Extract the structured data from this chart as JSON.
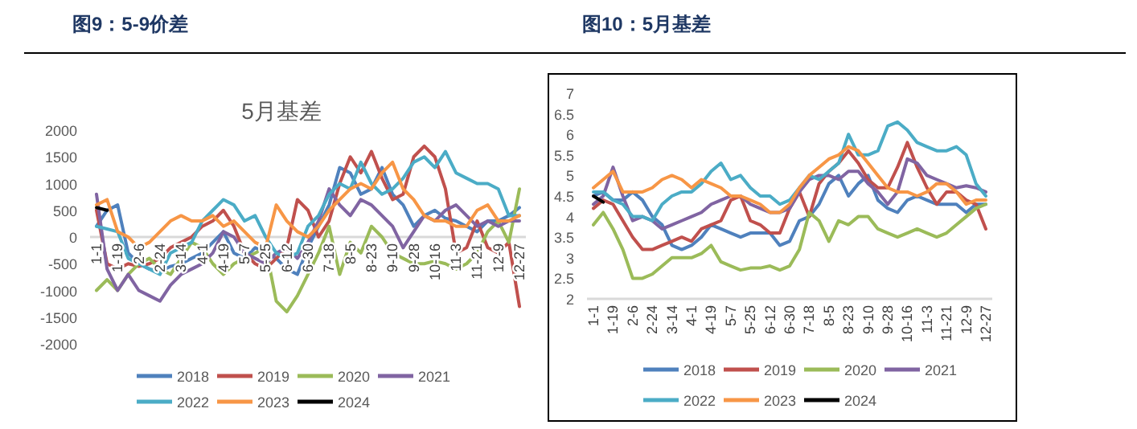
{
  "chart_data": [
    {
      "type": "line",
      "title": "图9：5-9价差",
      "subtitle": "5月基差",
      "legend": "bottom",
      "categories": [
        "1-1",
        null,
        "1-19",
        null,
        "2-6",
        null,
        "2-24",
        null,
        "3-14",
        null,
        "4-1",
        null,
        "4-19",
        null,
        "5-7",
        null,
        "5-25",
        null,
        "6-12",
        null,
        "6-30",
        null,
        "7-18",
        null,
        "8-5",
        null,
        "8-23",
        null,
        "9-10",
        null,
        "9-28",
        null,
        "10-16",
        null,
        "11-3",
        null,
        "11-21",
        null,
        "12-9",
        null,
        "12-27"
      ],
      "ylim": [
        -2000,
        2000
      ],
      "yticks": [
        -2000,
        -1500,
        -1000,
        -500,
        0,
        500,
        1000,
        1500,
        2000
      ],
      "series": [
        {
          "name": "2018",
          "color": "#4f81bd",
          "values": [
            200,
            500,
            600,
            -300,
            -500,
            -600,
            -650,
            -550,
            -500,
            -400,
            -300,
            -100,
            100,
            -300,
            -400,
            -200,
            -300,
            -400,
            -600,
            -700,
            -200,
            200,
            600,
            1300,
            1200,
            800,
            900,
            1300,
            800,
            600,
            200,
            400,
            500,
            350,
            300,
            200,
            100,
            300,
            300,
            400,
            550
          ]
        },
        {
          "name": "2019",
          "color": "#c0504d",
          "values": [
            500,
            -500,
            -600,
            -500,
            -550,
            -500,
            -400,
            -200,
            -100,
            0,
            200,
            300,
            500,
            200,
            -300,
            -500,
            -600,
            -400,
            -200,
            700,
            500,
            0,
            300,
            1000,
            1500,
            1200,
            1600,
            1100,
            700,
            800,
            1500,
            1700,
            1500,
            900,
            -300,
            -200,
            300,
            -200,
            -300,
            -100,
            -1300
          ]
        },
        {
          "name": "2020",
          "color": "#9bbb59",
          "values": [
            -1000,
            -800,
            -1000,
            -700,
            -500,
            -400,
            -600,
            -700,
            -400,
            -100,
            -200,
            -500,
            -700,
            -500,
            -400,
            -300,
            -200,
            -1200,
            -1400,
            -1100,
            -700,
            -300,
            200,
            -700,
            -100,
            -300,
            200,
            0,
            -300,
            -400,
            -500,
            -500,
            -450,
            -500,
            -600,
            -500,
            -300,
            100,
            300,
            -100,
            900
          ]
        },
        {
          "name": "2021",
          "color": "#8064a2",
          "values": [
            800,
            -600,
            -1000,
            -700,
            -1000,
            -1100,
            -1200,
            -900,
            -700,
            -600,
            -500,
            -300,
            100,
            0,
            -300,
            -400,
            -500,
            -300,
            -200,
            -400,
            -100,
            300,
            900,
            600,
            400,
            700,
            600,
            400,
            200,
            -200,
            100,
            400,
            300,
            500,
            600,
            400,
            200,
            300,
            200,
            300,
            300
          ]
        },
        {
          "name": "2022",
          "color": "#4bacc6",
          "values": [
            200,
            150,
            100,
            -400,
            -500,
            -600,
            -700,
            -300,
            -200,
            -100,
            300,
            500,
            700,
            600,
            300,
            400,
            0,
            -300,
            -400,
            -300,
            200,
            400,
            800,
            1000,
            900,
            1400,
            1000,
            800,
            900,
            1100,
            1400,
            1500,
            1300,
            1600,
            1200,
            1100,
            1000,
            1000,
            900,
            400,
            400
          ]
        },
        {
          "name": "2023",
          "color": "#f79646",
          "values": [
            600,
            700,
            100,
            0,
            -200,
            -100,
            100,
            300,
            400,
            300,
            300,
            400,
            200,
            300,
            100,
            -100,
            -200,
            600,
            300,
            100,
            0,
            200,
            500,
            700,
            900,
            1000,
            900,
            1200,
            1400,
            900,
            700,
            400,
            300,
            300,
            200,
            200,
            500,
            600,
            300,
            300,
            400
          ]
        },
        {
          "name": "2024",
          "color": "#000000",
          "values": [
            550,
            500,
            null,
            null,
            null,
            null,
            null,
            null,
            null,
            null,
            null,
            null,
            null,
            null,
            null,
            null,
            null,
            null,
            null,
            null,
            null,
            null,
            null,
            null,
            null,
            null,
            null,
            null,
            null,
            null,
            null,
            null,
            null,
            null,
            null,
            null,
            null,
            null,
            null,
            null,
            null
          ]
        }
      ]
    },
    {
      "type": "line",
      "title": "图10：5月基差",
      "legend": "bottom",
      "categories": [
        "1-1",
        null,
        "1-19",
        null,
        "2-6",
        null,
        "2-24",
        null,
        "3-14",
        null,
        "4-1",
        null,
        "4-19",
        null,
        "5-7",
        null,
        "5-25",
        null,
        "6-12",
        null,
        "6-30",
        null,
        "7-18",
        null,
        "8-5",
        null,
        "8-23",
        null,
        "9-10",
        null,
        "9-28",
        null,
        "10-16",
        null,
        "11-3",
        null,
        "11-21",
        null,
        "12-9",
        null,
        "12-27"
      ],
      "ylim": [
        2,
        7
      ],
      "yticks": [
        2,
        2.5,
        3,
        3.5,
        4,
        4.5,
        5,
        5.5,
        6,
        6.5,
        7
      ],
      "series": [
        {
          "name": "2018",
          "color": "#4f81bd",
          "values": [
            4.5,
            4.6,
            4.4,
            4.4,
            4.6,
            4.4,
            4.0,
            3.8,
            3.3,
            3.2,
            3.3,
            3.5,
            3.8,
            3.7,
            3.6,
            3.5,
            3.6,
            3.6,
            3.6,
            3.3,
            3.4,
            3.9,
            4.0,
            4.3,
            4.8,
            5.0,
            4.5,
            4.8,
            5.0,
            4.4,
            4.2,
            4.1,
            4.4,
            4.5,
            4.4,
            4.3,
            4.3,
            4.3,
            4.1,
            4.3,
            4.3
          ]
        },
        {
          "name": "2019",
          "color": "#c0504d",
          "values": [
            4.2,
            4.4,
            4.3,
            3.9,
            3.5,
            3.2,
            3.2,
            3.3,
            3.4,
            3.5,
            3.4,
            3.7,
            3.8,
            3.9,
            4.4,
            4.5,
            3.9,
            3.8,
            3.6,
            3.6,
            4.2,
            4.6,
            4.0,
            4.8,
            5.1,
            5.3,
            5.6,
            5.3,
            4.9,
            4.7,
            4.7,
            5.2,
            5.8,
            5.2,
            4.7,
            4.3,
            4.6,
            4.6,
            4.4,
            4.3,
            3.7
          ]
        },
        {
          "name": "2020",
          "color": "#9bbb59",
          "values": [
            3.8,
            4.1,
            3.7,
            3.2,
            2.5,
            2.5,
            2.6,
            2.8,
            3.0,
            3.0,
            3.0,
            3.1,
            3.3,
            2.9,
            2.8,
            2.7,
            2.75,
            2.75,
            2.8,
            2.7,
            2.8,
            3.2,
            4.1,
            3.9,
            3.4,
            3.9,
            3.8,
            4.0,
            4.0,
            3.7,
            3.6,
            3.5,
            3.6,
            3.7,
            3.6,
            3.5,
            3.6,
            3.8,
            4.0,
            4.2,
            4.3
          ]
        },
        {
          "name": "2021",
          "color": "#8064a2",
          "values": [
            4.3,
            4.5,
            5.2,
            4.5,
            3.9,
            4.0,
            3.9,
            3.7,
            3.8,
            3.9,
            4.0,
            4.1,
            4.3,
            4.4,
            4.5,
            4.5,
            4.3,
            4.2,
            4.1,
            4.1,
            4.2,
            4.6,
            4.9,
            5.0,
            5.0,
            4.9,
            5.1,
            5.1,
            4.8,
            4.6,
            4.3,
            4.6,
            5.4,
            5.3,
            5.0,
            4.9,
            4.8,
            4.7,
            4.75,
            4.7,
            4.6
          ]
        },
        {
          "name": "2022",
          "color": "#4bacc6",
          "values": [
            4.6,
            4.6,
            4.4,
            4.3,
            4.0,
            4.0,
            3.9,
            4.3,
            4.5,
            4.6,
            4.6,
            4.8,
            5.1,
            5.3,
            4.9,
            5.0,
            4.7,
            4.5,
            4.5,
            4.3,
            4.4,
            4.7,
            5.0,
            4.9,
            5.1,
            5.3,
            6.0,
            5.5,
            5.5,
            5.6,
            6.2,
            6.3,
            6.1,
            5.8,
            5.7,
            5.6,
            5.6,
            5.7,
            5.5,
            4.8,
            4.5
          ]
        },
        {
          "name": "2023",
          "color": "#f79646",
          "values": [
            4.7,
            4.9,
            5.1,
            4.6,
            4.6,
            4.6,
            4.7,
            4.9,
            5.0,
            4.9,
            4.7,
            4.9,
            4.8,
            4.7,
            4.5,
            4.5,
            4.4,
            4.3,
            4.1,
            4.1,
            4.3,
            4.7,
            5.0,
            5.2,
            5.4,
            5.5,
            5.7,
            5.6,
            5.3,
            5.0,
            4.7,
            4.6,
            4.6,
            4.5,
            4.6,
            4.8,
            4.8,
            4.6,
            4.3,
            4.4,
            4.4
          ]
        },
        {
          "name": "2024",
          "color": "#000000",
          "values": [
            4.5,
            4.35,
            null,
            null,
            null,
            null,
            null,
            null,
            null,
            null,
            null,
            null,
            null,
            null,
            null,
            null,
            null,
            null,
            null,
            null,
            null,
            null,
            null,
            null,
            null,
            null,
            null,
            null,
            null,
            null,
            null,
            null,
            null,
            null,
            null,
            null,
            null,
            null,
            null,
            null,
            null
          ]
        }
      ]
    }
  ]
}
